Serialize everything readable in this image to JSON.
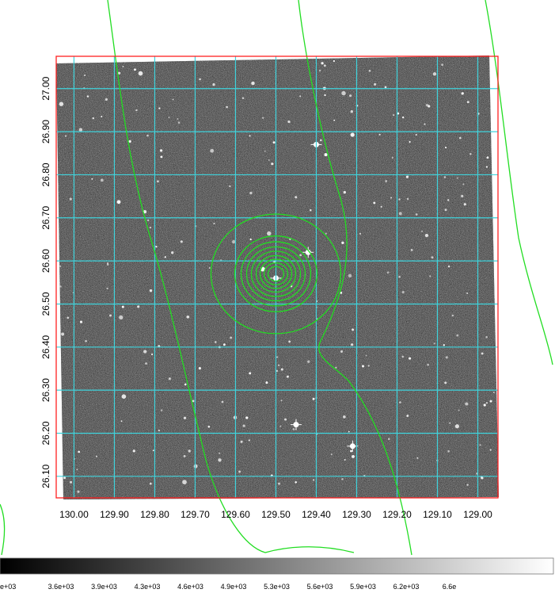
{
  "chart_data": {
    "type": "heatmap",
    "title": "",
    "xlabel": "",
    "ylabel": "",
    "x_axis": {
      "ticks": [
        130.0,
        129.9,
        129.8,
        129.7,
        129.6,
        129.5,
        129.4,
        129.3,
        129.2,
        129.1,
        129.0
      ],
      "tick_labels": [
        "130.00",
        "129.90",
        "129.80",
        "129.70",
        "129.60",
        "129.50",
        "129.40",
        "129.30",
        "129.20",
        "129.10",
        "129.00"
      ],
      "xlim": [
        130.044,
        128.95
      ],
      "reversed": true
    },
    "y_axis": {
      "ticks": [
        26.1,
        26.2,
        26.3,
        26.4,
        26.5,
        26.6,
        26.7,
        26.8,
        26.9,
        27.0
      ],
      "tick_labels": [
        "26.10",
        "26.20",
        "26.30",
        "26.40",
        "26.50",
        "26.60",
        "26.70",
        "26.80",
        "26.90",
        "27.00"
      ],
      "ylim": [
        26.05,
        27.075
      ]
    },
    "grid": true,
    "grid_color": "#3fd3dc",
    "contour_color": "#22dd22",
    "frame_color": "#ff2020",
    "contour_center": {
      "x": 129.5,
      "y": 26.57
    },
    "contour_levels": 9,
    "bright_sources": [
      {
        "x": 129.5,
        "y": 26.56
      },
      {
        "x": 129.42,
        "y": 26.62
      },
      {
        "x": 129.45,
        "y": 26.22
      },
      {
        "x": 129.31,
        "y": 26.17
      },
      {
        "x": 129.4,
        "y": 26.87
      }
    ],
    "colorbar": {
      "colormap": "gray",
      "tick_labels": [
        "3.6e+03",
        "3.9e+03",
        "4.3e+03",
        "4.6e+03",
        "4.9e+03",
        "5.3e+03",
        "5.6e+03",
        "5.9e+03",
        "6.2e+03",
        "6.6e"
      ],
      "clipped_left_label": "e+03"
    }
  }
}
